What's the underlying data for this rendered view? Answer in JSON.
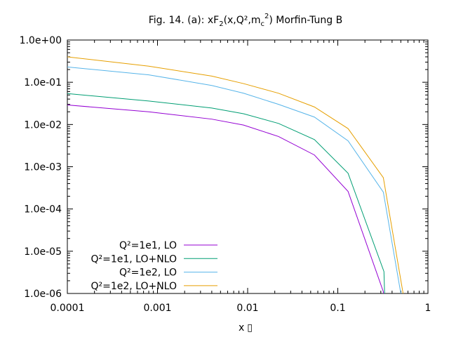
{
  "chart_data": {
    "type": "line",
    "title": {
      "prefix": "Fig. 14. (a): xF",
      "sub1": "2",
      "middle": "(x,Q²,m",
      "sub2": "c",
      "sup": "2",
      "suffix": ") Morfin-Tung B"
    },
    "xlabel": "x",
    "xlabel_symbol": "▯",
    "ylabel": "",
    "xscale": "log",
    "yscale": "log",
    "xlim": [
      0.0001,
      1
    ],
    "ylim": [
      1e-06,
      1
    ],
    "x_ticks": [
      {
        "value": 0.0001,
        "label": "0.0001"
      },
      {
        "value": 0.001,
        "label": "0.001"
      },
      {
        "value": 0.01,
        "label": "0.01"
      },
      {
        "value": 0.1,
        "label": "0.1"
      },
      {
        "value": 1,
        "label": "1"
      }
    ],
    "y_ticks": [
      {
        "value": 1,
        "label": "1.0e+00"
      },
      {
        "value": 0.1,
        "label": "1.0e-01"
      },
      {
        "value": 0.01,
        "label": "1.0e-02"
      },
      {
        "value": 0.001,
        "label": "1.0e-03"
      },
      {
        "value": 0.0001,
        "label": "1.0e-04"
      },
      {
        "value": 1e-05,
        "label": "1.0e-05"
      },
      {
        "value": 1e-06,
        "label": "1.0e-06"
      }
    ],
    "grid": false,
    "legend_position": "bottom-left",
    "series": [
      {
        "name": "Q²=1e1, LO",
        "color": "#9400d3",
        "x": [
          0.0001,
          0.0008,
          0.004,
          0.009,
          0.022,
          0.055,
          0.13,
          0.32,
          0.335
        ],
        "y": [
          0.029,
          0.02,
          0.0134,
          0.0097,
          0.0052,
          0.0019,
          0.00026,
          1.1e-06,
          4e-07
        ]
      },
      {
        "name": "Q²=1e1, LO+NLO",
        "color": "#009e73",
        "x": [
          0.0001,
          0.0008,
          0.004,
          0.009,
          0.022,
          0.055,
          0.13,
          0.325,
          0.33,
          0.335
        ],
        "y": [
          0.054,
          0.036,
          0.0245,
          0.018,
          0.0106,
          0.0044,
          0.0007,
          3.3e-06,
          1.1e-06,
          4e-07
        ]
      },
      {
        "name": "Q²=1e2, LO",
        "color": "#56b4e9",
        "x": [
          0.0001,
          0.0008,
          0.004,
          0.009,
          0.022,
          0.055,
          0.13,
          0.32,
          0.5,
          0.51
        ],
        "y": [
          0.23,
          0.15,
          0.084,
          0.055,
          0.03,
          0.015,
          0.0041,
          0.00025,
          1e-06,
          4e-07
        ]
      },
      {
        "name": "Q²=1e2, LO+NLO",
        "color": "#e69f00",
        "x": [
          0.0001,
          0.0008,
          0.004,
          0.009,
          0.022,
          0.055,
          0.13,
          0.32,
          0.53,
          0.54
        ],
        "y": [
          0.4,
          0.24,
          0.14,
          0.093,
          0.055,
          0.026,
          0.008,
          0.00055,
          1e-06,
          4e-07
        ]
      }
    ]
  }
}
